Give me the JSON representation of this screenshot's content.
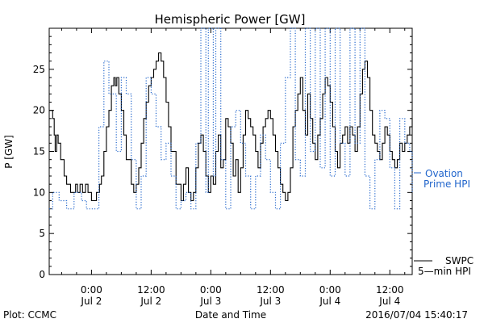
{
  "chart_data": {
    "type": "line",
    "title": "Hemispheric Power [GW]",
    "ylabel": "P [GW]",
    "xlabel": "Date and Time",
    "ylim": [
      0,
      30
    ],
    "yticks": [
      0,
      5,
      10,
      15,
      20,
      25
    ],
    "xticks": [
      {
        "hours": 0,
        "time": "0:00",
        "day": "Jul 2"
      },
      {
        "hours": 12,
        "time": "12:00",
        "day": "Jul 2"
      },
      {
        "hours": 24,
        "time": "0:00",
        "day": "Jul 3"
      },
      {
        "hours": 36,
        "time": "12:00",
        "day": "Jul 3"
      },
      {
        "hours": 48,
        "time": "0:00",
        "day": "Jul 4"
      },
      {
        "hours": 60,
        "time": "12:00",
        "day": "Jul 4"
      }
    ],
    "xrange_hours": [
      -8.5,
      64.5
    ],
    "grid": false,
    "series": [
      {
        "name": "SWPC 5-min HPI",
        "legend_lines": [
          "SWPC",
          "5—min HPI"
        ],
        "style": "solid",
        "color": "#000000",
        "x": [
          -8.5,
          -7.8,
          -7.5,
          -7.3,
          -7.0,
          -6.7,
          -6.2,
          -5.5,
          -5.0,
          -4.6,
          -4.2,
          -3.7,
          -3.2,
          -2.8,
          -2.3,
          -1.8,
          -1.2,
          -0.7,
          0.0,
          0.6,
          1.0,
          1.6,
          2.0,
          2.5,
          3.0,
          3.5,
          4.0,
          4.5,
          4.8,
          5.1,
          5.5,
          6.0,
          6.5,
          7.0,
          8.0,
          8.5,
          9.0,
          9.5,
          10.0,
          10.5,
          11.0,
          11.5,
          12.0,
          12.5,
          13.0,
          13.5,
          14.0,
          14.5,
          15.0,
          15.5,
          16.0,
          17.0,
          18.0,
          18.5,
          19.0,
          19.5,
          20.0,
          20.5,
          21.0,
          21.5,
          22.0,
          22.5,
          23.0,
          23.5,
          24.0,
          24.5,
          25.0,
          25.5,
          26.0,
          26.5,
          27.0,
          27.5,
          28.0,
          28.5,
          29.0,
          29.5,
          30.0,
          30.5,
          31.0,
          31.5,
          32.0,
          32.5,
          33.0,
          33.5,
          34.0,
          34.5,
          35.0,
          35.5,
          36.0,
          36.5,
          37.0,
          37.5,
          38.0,
          38.5,
          39.0,
          39.5,
          40.0,
          40.5,
          41.0,
          41.5,
          42.0,
          42.5,
          43.0,
          43.5,
          44.0,
          44.5,
          45.0,
          45.5,
          46.0,
          46.5,
          47.0,
          47.5,
          48.0,
          48.5,
          49.0,
          49.5,
          50.0,
          50.5,
          51.0,
          51.5,
          52.0,
          52.5,
          53.0,
          53.5,
          54.0,
          54.5,
          55.0,
          55.5,
          56.0,
          56.5,
          57.0,
          57.5,
          58.0,
          58.5,
          59.0,
          59.5,
          60.0,
          60.5,
          61.0,
          61.5,
          62.0,
          62.5,
          63.0,
          63.5,
          64.0,
          64.5
        ],
        "y": [
          20,
          19,
          17,
          15,
          17,
          16,
          14,
          12,
          11,
          11,
          10,
          10,
          11,
          10,
          11,
          10,
          11,
          10,
          9,
          9,
          10,
          11,
          12,
          15,
          18,
          20,
          23,
          24,
          23,
          24,
          22,
          20,
          17,
          14,
          11,
          10,
          11,
          13,
          16,
          19,
          21,
          23,
          24,
          25,
          26,
          27,
          26,
          24,
          21,
          18,
          15,
          11,
          9,
          11,
          13,
          10,
          9,
          10,
          13,
          16,
          17,
          15,
          12,
          10,
          12,
          11,
          15,
          17,
          13,
          14,
          19,
          18,
          16,
          12,
          14,
          10,
          13,
          17,
          20,
          19,
          18,
          17,
          15,
          13,
          16,
          18,
          19,
          20,
          19,
          17,
          15,
          13,
          11,
          10,
          9,
          10,
          13,
          18,
          20,
          22,
          24,
          20,
          17,
          22,
          19,
          16,
          14,
          17,
          19,
          22,
          24,
          23,
          21,
          18,
          15,
          13,
          16,
          17,
          18,
          16,
          18,
          17,
          15,
          18,
          22,
          25,
          26,
          24,
          20,
          17,
          16,
          15,
          14,
          16,
          18,
          17,
          15,
          14,
          13,
          14,
          16,
          15,
          16,
          17,
          18,
          19
        ]
      },
      {
        "name": "Ovation Prime HPI",
        "legend_lines": [
          "— Ovation",
          "Prime HPI"
        ],
        "style": "dotted",
        "color": "#2266cc",
        "x": [
          -8.5,
          -7.8,
          -6.5,
          -5.0,
          -3.5,
          -2.0,
          -1.0,
          0.0,
          1.5,
          2.5,
          3.5,
          5.0,
          6.0,
          7.0,
          8.0,
          9.0,
          10.0,
          11.0,
          12.0,
          13.0,
          14.0,
          15.0,
          16.0,
          17.0,
          18.0,
          19.0,
          20.0,
          21.0,
          22.0,
          23.0,
          23.5,
          24.5,
          25.0,
          26.0,
          27.0,
          28.0,
          29.0,
          30.0,
          31.0,
          32.0,
          33.0,
          34.0,
          35.0,
          36.0,
          37.0,
          38.0,
          39.0,
          40.0,
          41.0,
          42.0,
          43.0,
          44.0,
          45.0,
          46.0,
          47.0,
          48.0,
          49.0,
          50.0,
          51.0,
          52.0,
          53.0,
          54.0,
          55.0,
          56.0,
          57.0,
          58.0,
          59.0,
          60.0,
          61.0,
          62.0,
          63.0,
          64.0,
          64.5
        ],
        "y": [
          8,
          10,
          9,
          8,
          10,
          9,
          8,
          8,
          18,
          26,
          22,
          15,
          24,
          22,
          14,
          8,
          12,
          24,
          22,
          18,
          14,
          16,
          12,
          8,
          9,
          10,
          8,
          16,
          30,
          10,
          30,
          12,
          30,
          14,
          8,
          18,
          20,
          16,
          12,
          8,
          12,
          17,
          14,
          10,
          8,
          16,
          24,
          30,
          14,
          12,
          30,
          15,
          30,
          13,
          30,
          12,
          30,
          16,
          12,
          30,
          16,
          30,
          12,
          8,
          14,
          20,
          19,
          13,
          8,
          19,
          16,
          15,
          10
        ]
      }
    ]
  },
  "footer": {
    "left": "Plot: CCMC",
    "center": "Date and Time",
    "right": "2016/07/04 15:40:17"
  }
}
